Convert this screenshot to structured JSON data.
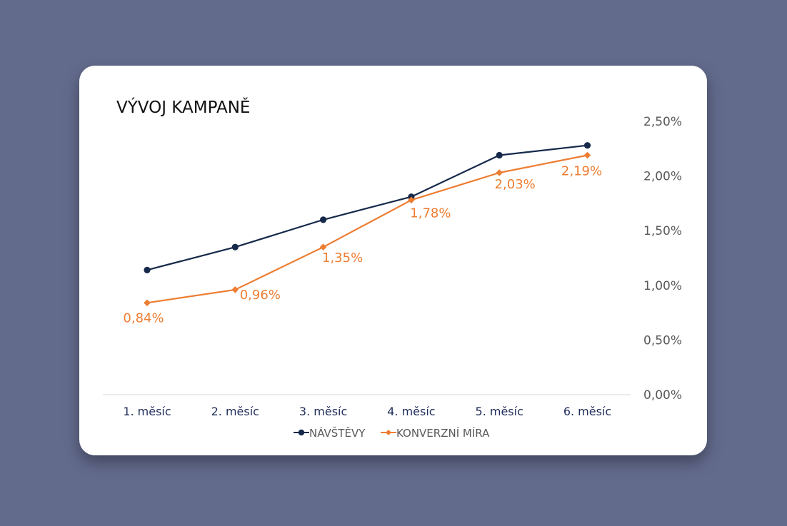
{
  "chart_data": {
    "type": "line",
    "title": "VÝVOJ KAMPANĚ",
    "categories": [
      "1. měsíc",
      "2. měsíc",
      "3. měsíc",
      "4. měsíc",
      "5. měsíc",
      "6. měsíc"
    ],
    "y_axis": {
      "position": "right",
      "ticks": [
        "0,00%",
        "0,50%",
        "1,00%",
        "1,50%",
        "2,00%",
        "2,50%"
      ],
      "ylim": [
        0,
        2.5
      ]
    },
    "series": [
      {
        "name": "NÁVŠTĚVY",
        "color": "#16294a",
        "marker": "circle",
        "values": [
          1.14,
          1.35,
          1.6,
          1.81,
          2.19,
          2.28
        ],
        "labels": []
      },
      {
        "name": "KONVERZNÍ MÍRA",
        "color": "#ed7d31",
        "marker": "diamond",
        "values": [
          0.84,
          0.96,
          1.35,
          1.78,
          2.03,
          2.19
        ],
        "labels": [
          "0,84%",
          "0,96%",
          "1,35%",
          "1,78%",
          "2,03%",
          "2,19%"
        ]
      }
    ],
    "grid": false,
    "legend": "bottom"
  }
}
